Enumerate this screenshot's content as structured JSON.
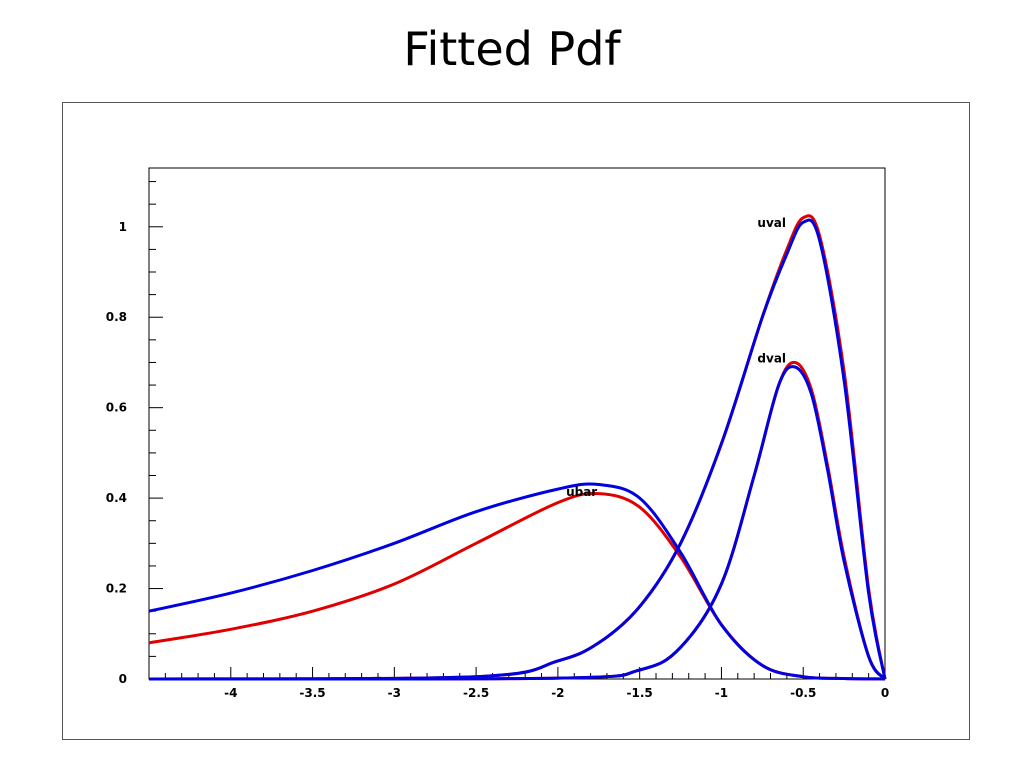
{
  "slide": {
    "title": "Fitted Pdf"
  },
  "colors": {
    "fit": "#e00000",
    "reference": "#0000e0",
    "axis": "#000000"
  },
  "chart_data": {
    "type": "line",
    "title": "Fitted Pdf",
    "xlabel": "",
    "ylabel": "",
    "xlim": [
      -4.5,
      0
    ],
    "ylim": [
      0,
      1.13
    ],
    "grid": false,
    "x_ticks": [
      -4,
      -3.5,
      -3,
      -2.5,
      -2,
      -1.5,
      -1,
      -0.5,
      0
    ],
    "x_tick_labels": [
      "-4",
      "-3.5",
      "-3",
      "-2.5",
      "-2",
      "-1.5",
      "-1",
      "-0.5",
      "0"
    ],
    "y_ticks": [
      0,
      0.2,
      0.4,
      0.6,
      0.8,
      1
    ],
    "y_tick_labels": [
      "0",
      "0.2",
      "0.4",
      "0.6",
      "0.8",
      "1"
    ],
    "annotations": [
      {
        "text": "uval",
        "x": -0.78,
        "y": 1.0
      },
      {
        "text": "dval",
        "x": -0.78,
        "y": 0.7
      },
      {
        "text": "ubar",
        "x": -1.95,
        "y": 0.405
      }
    ],
    "series": [
      {
        "color": "red",
        "x": [
          -4.5,
          -4,
          -3.5,
          -3,
          -2.5,
          -2,
          -1.75,
          -1.5,
          -1.25,
          -1,
          -0.75,
          -0.5,
          -0.25,
          0
        ],
        "y": [
          0.08,
          0.11,
          0.15,
          0.21,
          0.3,
          0.39,
          0.41,
          0.38,
          0.27,
          0.12,
          0.03,
          0.005,
          0.001,
          0
        ]
      },
      {
        "color": "blue",
        "x": [
          -4.5,
          -4,
          -3.5,
          -3,
          -2.5,
          -2,
          -1.75,
          -1.5,
          -1.25,
          -1,
          -0.75,
          -0.5,
          -0.25,
          0
        ],
        "y": [
          0.15,
          0.19,
          0.24,
          0.3,
          0.37,
          0.42,
          0.43,
          0.4,
          0.28,
          0.12,
          0.03,
          0.005,
          0.001,
          0
        ]
      },
      {
        "color": "red",
        "x": [
          -4.5,
          -2.5,
          -2,
          -1.75,
          -1.5,
          -1.25,
          -1,
          -0.75,
          -0.6,
          -0.5,
          -0.4,
          -0.25,
          -0.1,
          0
        ],
        "y": [
          0,
          0.005,
          0.04,
          0.08,
          0.16,
          0.3,
          0.52,
          0.8,
          0.95,
          1.02,
          0.98,
          0.68,
          0.2,
          0
        ]
      },
      {
        "color": "blue",
        "x": [
          -4.5,
          -2.5,
          -2,
          -1.75,
          -1.5,
          -1.25,
          -1,
          -0.75,
          -0.6,
          -0.5,
          -0.4,
          -0.25,
          -0.1,
          0
        ],
        "y": [
          0,
          0.005,
          0.04,
          0.08,
          0.16,
          0.3,
          0.52,
          0.8,
          0.94,
          1.01,
          0.97,
          0.66,
          0.19,
          0
        ]
      },
      {
        "color": "red",
        "x": [
          -4.5,
          -2,
          -1.5,
          -1.25,
          -1,
          -0.8,
          -0.65,
          -0.55,
          -0.45,
          -0.35,
          -0.25,
          -0.1,
          0
        ],
        "y": [
          0,
          0.002,
          0.02,
          0.07,
          0.21,
          0.45,
          0.65,
          0.7,
          0.64,
          0.47,
          0.27,
          0.05,
          0
        ]
      },
      {
        "color": "blue",
        "x": [
          -4.5,
          -2,
          -1.5,
          -1.25,
          -1,
          -0.8,
          -0.65,
          -0.55,
          -0.45,
          -0.35,
          -0.25,
          -0.1,
          0
        ],
        "y": [
          0,
          0.002,
          0.02,
          0.07,
          0.21,
          0.45,
          0.65,
          0.69,
          0.63,
          0.46,
          0.26,
          0.05,
          0
        ]
      }
    ]
  }
}
